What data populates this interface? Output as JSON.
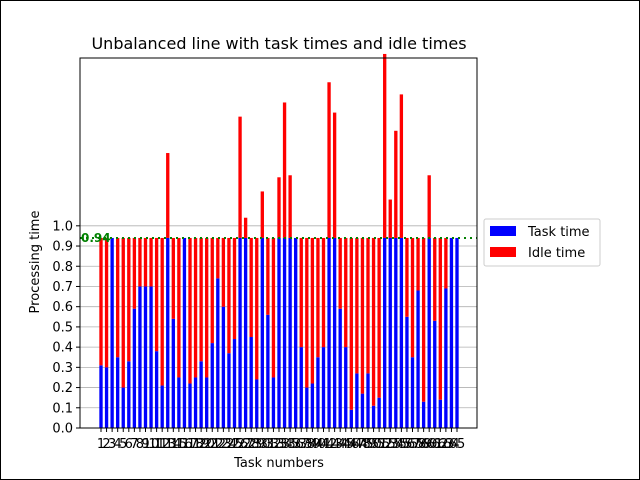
{
  "chart_data": {
    "type": "bar",
    "stacked": true,
    "title": "Unbalanced line with task times and idle times",
    "xlabel": "Task numbers",
    "ylabel": "Processing time",
    "ylim": [
      0,
      1.83
    ],
    "yticks": [
      "0.0",
      "0.1",
      "0.2",
      "0.3",
      "0.4",
      "0.5",
      "0.6",
      "0.7",
      "0.8",
      "0.9",
      "1.0"
    ],
    "grid": "horizontal",
    "legend_position": "right-outside",
    "cycle_time": 0.94,
    "cycle_time_label": "0.94",
    "categories": [
      "1",
      "2",
      "3",
      "4",
      "5",
      "6",
      "7",
      "8",
      "9",
      "10",
      "11",
      "12",
      "13",
      "14",
      "15",
      "16",
      "17",
      "18",
      "19",
      "20",
      "21",
      "22",
      "23",
      "24",
      "25",
      "26",
      "27",
      "28",
      "29",
      "30",
      "31",
      "32",
      "33",
      "34",
      "35",
      "36",
      "37",
      "38",
      "39",
      "40",
      "41",
      "42",
      "43",
      "44",
      "45",
      "46",
      "47",
      "48",
      "49",
      "50",
      "51",
      "52",
      "53",
      "54",
      "55",
      "56",
      "57",
      "58",
      "59",
      "60",
      "61",
      "62",
      "63",
      "64",
      "65"
    ],
    "series": [
      {
        "name": "Task time",
        "color": "#0000ff",
        "values": [
          0.31,
          0.3,
          0.94,
          0.35,
          0.2,
          0.33,
          0.59,
          0.7,
          0.7,
          0.7,
          0.38,
          0.21,
          0.94,
          0.54,
          0.25,
          0.94,
          0.22,
          0.25,
          0.33,
          0.25,
          0.42,
          0.74,
          0.6,
          0.37,
          0.44,
          0.94,
          0.94,
          0.45,
          0.24,
          0.94,
          0.56,
          0.25,
          0.94,
          0.94,
          0.94,
          0.94,
          0.4,
          0.2,
          0.22,
          0.35,
          0.4,
          0.94,
          0.94,
          0.59,
          0.4,
          0.09,
          0.27,
          0.17,
          0.27,
          0.11,
          0.15,
          0.94,
          0.94,
          0.94,
          0.94,
          0.55,
          0.35,
          0.68,
          0.13,
          0.94,
          0.53,
          0.14,
          0.69,
          0.94,
          0.94
        ]
      },
      {
        "name": "Idle time",
        "color": "#ff0000",
        "values": [
          0.63,
          0.64,
          0.0,
          0.59,
          0.74,
          0.61,
          0.35,
          0.24,
          0.24,
          0.24,
          0.56,
          0.73,
          0.42,
          0.4,
          0.69,
          0.0,
          0.72,
          0.69,
          0.61,
          0.69,
          0.52,
          0.2,
          0.34,
          0.57,
          0.5,
          0.6,
          0.1,
          0.49,
          0.7,
          0.23,
          0.38,
          0.69,
          0.3,
          0.67,
          0.31,
          0.0,
          0.54,
          0.74,
          0.72,
          0.59,
          0.54,
          0.77,
          0.62,
          0.35,
          0.54,
          0.85,
          0.67,
          0.77,
          0.67,
          0.83,
          0.79,
          0.91,
          0.19,
          0.53,
          0.71,
          0.39,
          0.59,
          0.26,
          0.81,
          0.31,
          0.41,
          0.8,
          0.25,
          0.0,
          0.0
        ]
      }
    ]
  }
}
